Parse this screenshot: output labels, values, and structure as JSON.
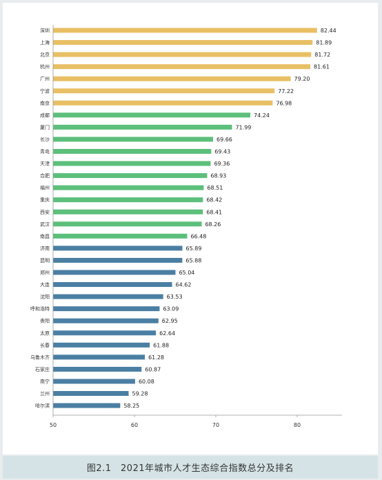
{
  "caption": "图2.1　2021年城市人才生态综合指数总分及排名",
  "chart_data": {
    "type": "bar",
    "orientation": "horizontal",
    "categories": [
      "深圳",
      "上海",
      "北京",
      "杭州",
      "广州",
      "宁波",
      "南京",
      "成都",
      "厦门",
      "长沙",
      "青岛",
      "天津",
      "合肥",
      "福州",
      "重庆",
      "西安",
      "武汉",
      "南昌",
      "济南",
      "昆明",
      "郑州",
      "大连",
      "沈阳",
      "呼和浩特",
      "贵阳",
      "太原",
      "长春",
      "乌鲁木齐",
      "石家庄",
      "南宁",
      "兰州",
      "哈尔滨"
    ],
    "values": [
      82.44,
      81.89,
      81.72,
      81.61,
      79.2,
      77.22,
      76.98,
      74.24,
      71.99,
      69.66,
      69.43,
      69.36,
      68.93,
      68.51,
      68.42,
      68.41,
      68.26,
      66.48,
      65.89,
      65.88,
      65.04,
      64.62,
      63.53,
      63.09,
      62.95,
      62.64,
      61.88,
      61.28,
      60.87,
      60.08,
      59.28,
      58.25
    ],
    "value_labels": [
      "82.44",
      "81.89",
      "81.72",
      "81.61",
      "79.20",
      "77.22",
      "76.98",
      "74.24",
      "71.99",
      "69.66",
      "69.43",
      "69.36",
      "68.93",
      "68.51",
      "68.42",
      "68.41",
      "68.26",
      "66.48",
      "65.89",
      "65.88",
      "65.04",
      "64.62",
      "63.53",
      "63.09",
      "62.95",
      "62.64",
      "61.88",
      "61.28",
      "60.87",
      "60.08",
      "59.28",
      "58.25"
    ],
    "groups": [
      0,
      0,
      0,
      0,
      0,
      0,
      0,
      1,
      1,
      1,
      1,
      1,
      1,
      1,
      1,
      1,
      1,
      1,
      2,
      2,
      2,
      2,
      2,
      2,
      2,
      2,
      2,
      2,
      2,
      2,
      2,
      2
    ],
    "group_colors": [
      "#e8bf64",
      "#5cbf7b",
      "#4a7fa3"
    ],
    "xlim": [
      50,
      85
    ],
    "xticks": [
      "50",
      "60",
      "70",
      "80"
    ],
    "grid": false
  }
}
